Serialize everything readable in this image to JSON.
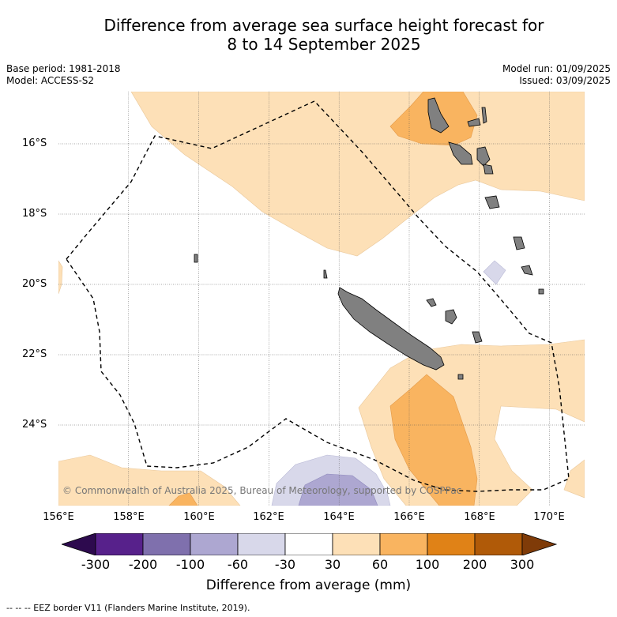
{
  "title_line1": "Difference from average sea surface height forecast for",
  "title_line2": "8 to 14 September 2025",
  "meta_left": [
    "Base period: 1981-2018",
    "Model: ACCESS-S2"
  ],
  "meta_right": [
    "Model run: 01/09/2025",
    "Issued: 03/09/2025"
  ],
  "longitude_ticks": [
    "156°E",
    "158°E",
    "160°E",
    "162°E",
    "164°E",
    "166°E",
    "168°E",
    "170°E"
  ],
  "latitude_ticks": [
    "16°S",
    "18°S",
    "20°S",
    "22°S",
    "24°S"
  ],
  "copyright": "© Commonwealth of Australia 2025, Bureau of Meteorology, supported by COSPPac",
  "colorbar": {
    "labels": [
      "-300",
      "-200",
      "-100",
      "-60",
      "-30",
      "30",
      "60",
      "100",
      "200",
      "300"
    ],
    "title": "Difference from average (mm)",
    "colors": [
      "#2d0a4e",
      "#57218b",
      "#7f70ad",
      "#ada7d1",
      "#d8d8ea",
      "#ffffff",
      "#fde0b7",
      "#f9b460",
      "#e08217",
      "#b05a08",
      "#7f3b08"
    ]
  },
  "footnote": "-- -- -- EEZ border V11 (Flanders Marine Institute, 2019)."
}
